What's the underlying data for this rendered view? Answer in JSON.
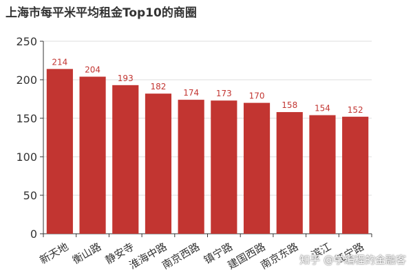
{
  "chart_data": {
    "type": "bar",
    "title": "上海市每平米平均租金Top10的商圈",
    "categories": [
      "新天地",
      "衡山路",
      "静安寺",
      "淮海中路",
      "南京西路",
      "镇宁路",
      "建国西路",
      "南京东路",
      "滨江",
      "江宁路"
    ],
    "values": [
      214,
      204,
      193,
      182,
      174,
      173,
      170,
      158,
      154,
      152
    ],
    "ylim": [
      0,
      250
    ],
    "yticks": [
      "0",
      "50",
      "100",
      "150",
      "200",
      "250"
    ],
    "grid": true,
    "bar_color": "#c23531",
    "label_color": "#c23531"
  },
  "watermark": "知乎 @学编程的金融客"
}
